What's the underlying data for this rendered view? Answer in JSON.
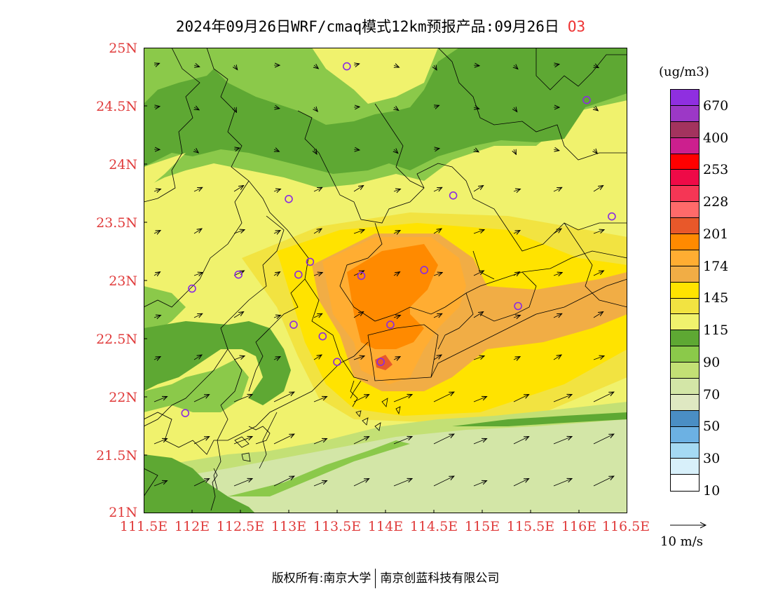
{
  "title": {
    "text": "2024年09月26日WRF/cmaq模式12km预报产品:09月26日",
    "species": "O3"
  },
  "axes": {
    "lat_labels": [
      "25N",
      "24.5N",
      "24N",
      "23.5N",
      "23N",
      "22.5N",
      "22N",
      "21.5N",
      "21N"
    ],
    "lon_labels": [
      "111.5E",
      "112E",
      "112.5E",
      "113E",
      "113.5E",
      "114E",
      "114.5E",
      "115E",
      "115.5E",
      "116E",
      "116.5E"
    ],
    "lat_range": [
      21,
      25
    ],
    "lon_range": [
      111.5,
      116.5
    ]
  },
  "colorbar": {
    "unit": "(ug/m3)",
    "labels": [
      "670",
      "400",
      "253",
      "228",
      "201",
      "174",
      "145",
      "115",
      "90",
      "70",
      "50",
      "30",
      "10"
    ],
    "colors": [
      "#8f2fe0",
      "#9c38c6",
      "#a3335e",
      "#cc1f8e",
      "#ff0000",
      "#ee0a47",
      "#f53655",
      "#ff6a6a",
      "#e8582a",
      "#ff8a00",
      "#ffad32",
      "#f1ad45",
      "#ffe300",
      "#f2e341",
      "#f0f26d",
      "#5ea833",
      "#8bc94a",
      "#c3e075",
      "#d3e6a7",
      "#dfe8c2",
      "#4a8ec4",
      "#6cb1e3",
      "#a5daf3",
      "#d8f0fa",
      "#ffffff"
    ]
  },
  "wind_reference": {
    "label": "10 m/s"
  },
  "map": {
    "background_color": "#f0f26d",
    "stations": [
      {
        "lon": 113.6,
        "lat": 24.84
      },
      {
        "lon": 116.08,
        "lat": 24.55
      },
      {
        "lon": 113.0,
        "lat": 23.7
      },
      {
        "lon": 114.7,
        "lat": 23.73
      },
      {
        "lon": 116.34,
        "lat": 23.55
      },
      {
        "lon": 113.22,
        "lat": 23.16
      },
      {
        "lon": 112.48,
        "lat": 23.05
      },
      {
        "lon": 113.1,
        "lat": 23.05
      },
      {
        "lon": 113.75,
        "lat": 23.04
      },
      {
        "lon": 114.4,
        "lat": 23.09
      },
      {
        "lon": 112.0,
        "lat": 22.93
      },
      {
        "lon": 115.37,
        "lat": 22.78
      },
      {
        "lon": 113.05,
        "lat": 22.62
      },
      {
        "lon": 114.05,
        "lat": 22.62
      },
      {
        "lon": 113.35,
        "lat": 22.52
      },
      {
        "lon": 113.5,
        "lat": 22.3
      },
      {
        "lon": 113.95,
        "lat": 22.3
      },
      {
        "lon": 111.93,
        "lat": 21.86
      }
    ]
  },
  "footer": {
    "left": "版权所有:南京大学",
    "right": "南京创蓝科技有限公司"
  }
}
